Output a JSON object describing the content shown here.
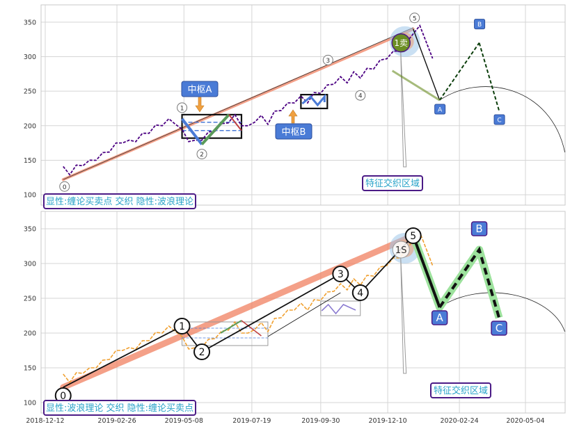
{
  "chart_data": [
    {
      "type": "line",
      "title": "",
      "caption": "显性:缠论买卖点 交织 隐性:波浪理论",
      "ylim": [
        85,
        375
      ],
      "yticks": [
        100,
        150,
        200,
        250,
        300,
        350
      ],
      "grid": true,
      "price_series": {
        "x": [
          "2018-12-31",
          "2019-01-07",
          "2019-01-14",
          "2019-01-21",
          "2019-01-28",
          "2019-02-04",
          "2019-02-11",
          "2019-02-18",
          "2019-02-25",
          "2019-03-04",
          "2019-03-11",
          "2019-03-18",
          "2019-03-25",
          "2019-04-01",
          "2019-04-08",
          "2019-04-15",
          "2019-04-22",
          "2019-04-29",
          "2019-05-06",
          "2019-05-13",
          "2019-05-20",
          "2019-05-27",
          "2019-06-03",
          "2019-06-10",
          "2019-06-17",
          "2019-06-24",
          "2019-07-01",
          "2019-07-08",
          "2019-07-15",
          "2019-07-22",
          "2019-07-29",
          "2019-08-05",
          "2019-08-12",
          "2019-08-19",
          "2019-08-26",
          "2019-09-02",
          "2019-09-09",
          "2019-09-16",
          "2019-09-23",
          "2019-09-30",
          "2019-10-07",
          "2019-10-14",
          "2019-10-21",
          "2019-10-28",
          "2019-11-04",
          "2019-11-11",
          "2019-11-18",
          "2019-11-25",
          "2019-12-02",
          "2019-12-09",
          "2019-12-16",
          "2019-12-23",
          "2019-12-30",
          "2020-01-06",
          "2020-01-13"
        ],
        "values": [
          138,
          132,
          140,
          145,
          147,
          153,
          158,
          165,
          172,
          178,
          176,
          180,
          186,
          192,
          198,
          203,
          207,
          205,
          192,
          180,
          176,
          182,
          188,
          195,
          200,
          207,
          213,
          203,
          197,
          208,
          212,
          205,
          218,
          225,
          230,
          236,
          240,
          236,
          245,
          250,
          256,
          263,
          268,
          265,
          275,
          272,
          280,
          285,
          292,
          300,
          305,
          311,
          318,
          336,
          342
        ]
      },
      "trend_line": {
        "x": [
          "2018-12-31",
          "2020-01-06"
        ],
        "y": [
          123,
          340
        ]
      },
      "swing_points": [
        {
          "label": "0",
          "x": "2018-12-31",
          "y": 122
        },
        {
          "label": "1",
          "x": "2019-05-06",
          "y": 210
        },
        {
          "label": "2",
          "x": "2019-05-27",
          "y": 173
        },
        {
          "label": "3",
          "x": "2019-10-21",
          "y": 285
        },
        {
          "label": "4",
          "x": "2019-11-11",
          "y": 258
        },
        {
          "label": "5",
          "x": "2020-01-06",
          "y": 340
        }
      ],
      "projection": {
        "labels": [
          "A",
          "B",
          "C"
        ],
        "x": [
          "2020-02-03",
          "2020-03-16",
          "2020-04-06"
        ],
        "y": [
          237,
          320,
          222
        ]
      },
      "annotations": [
        {
          "text": "中枢A",
          "type": "pivot-box",
          "x": [
            "2019-05-06",
            "2019-07-08"
          ],
          "y": [
            182,
            216
          ]
        },
        {
          "text": "中枢B",
          "type": "pivot-box",
          "x": [
            "2019-09-09",
            "2019-10-07"
          ],
          "y": [
            225,
            245
          ]
        },
        {
          "text": "1卖",
          "type": "sell-marker",
          "x": "2019-12-30",
          "y": 320
        },
        {
          "text": "特征交织区域",
          "type": "label"
        }
      ]
    },
    {
      "type": "line",
      "title": "",
      "caption": "显性:波浪理论 交织 隐性:缠论买卖点",
      "ylim": [
        85,
        375
      ],
      "yticks": [
        100,
        150,
        200,
        250,
        300,
        350
      ],
      "xticks": [
        "2018-12-12",
        "2019-02-26",
        "2019-05-08",
        "2019-07-19",
        "2019-09-30",
        "2019-12-10",
        "2020-02-24",
        "2020-05-04"
      ],
      "grid": true,
      "price_series": {
        "x": [
          "2018-12-31",
          "2019-01-07",
          "2019-01-14",
          "2019-01-21",
          "2019-01-28",
          "2019-02-04",
          "2019-02-11",
          "2019-02-18",
          "2019-02-25",
          "2019-03-04",
          "2019-03-11",
          "2019-03-18",
          "2019-03-25",
          "2019-04-01",
          "2019-04-08",
          "2019-04-15",
          "2019-04-22",
          "2019-04-29",
          "2019-05-06",
          "2019-05-13",
          "2019-05-20",
          "2019-05-27",
          "2019-06-03",
          "2019-06-10",
          "2019-06-17",
          "2019-06-24",
          "2019-07-01",
          "2019-07-08",
          "2019-07-15",
          "2019-07-22",
          "2019-07-29",
          "2019-08-05",
          "2019-08-12",
          "2019-08-19",
          "2019-08-26",
          "2019-09-02",
          "2019-09-09",
          "2019-09-16",
          "2019-09-23",
          "2019-09-30",
          "2019-10-07",
          "2019-10-14",
          "2019-10-21",
          "2019-10-28",
          "2019-11-04",
          "2019-11-11",
          "2019-11-18",
          "2019-11-25",
          "2019-12-02",
          "2019-12-09",
          "2019-12-16",
          "2019-12-23",
          "2019-12-30",
          "2020-01-06",
          "2020-01-13"
        ],
        "values": [
          138,
          132,
          140,
          145,
          147,
          153,
          158,
          165,
          172,
          178,
          176,
          180,
          186,
          192,
          198,
          203,
          207,
          205,
          192,
          180,
          176,
          182,
          188,
          195,
          200,
          207,
          213,
          203,
          197,
          208,
          212,
          205,
          218,
          225,
          230,
          236,
          240,
          236,
          245,
          250,
          256,
          263,
          268,
          265,
          275,
          272,
          280,
          285,
          292,
          300,
          305,
          311,
          318,
          336,
          342
        ]
      },
      "swing_points": [
        {
          "label": "0",
          "x": "2018-12-31",
          "y": 122
        },
        {
          "label": "1",
          "x": "2019-05-06",
          "y": 210
        },
        {
          "label": "2",
          "x": "2019-05-27",
          "y": 173
        },
        {
          "label": "3",
          "x": "2019-10-21",
          "y": 285
        },
        {
          "label": "4",
          "x": "2019-11-11",
          "y": 258
        },
        {
          "label": "5",
          "x": "2020-01-06",
          "y": 340
        }
      ],
      "projection": {
        "labels": [
          "A",
          "B",
          "C"
        ],
        "x": [
          "2020-02-03",
          "2020-03-16",
          "2020-04-06"
        ],
        "y": [
          237,
          320,
          222
        ]
      },
      "annotations": [
        {
          "text": "1S",
          "type": "sell-marker",
          "x": "2019-12-30",
          "y": 320
        },
        {
          "text": "特征交织区域",
          "type": "label"
        }
      ]
    }
  ],
  "colors": {
    "price_top": "#4b0082",
    "price_bottom": "#f0a030",
    "trend_band": "#f08060",
    "pivot_blue": "#4a7bd6",
    "accent_green": "#5a9a5a",
    "projection_fill": "#9de29d",
    "caption_border": "#4b1b86",
    "caption_text": "#2aa3c9",
    "sell_marker": "#6b8e23"
  }
}
